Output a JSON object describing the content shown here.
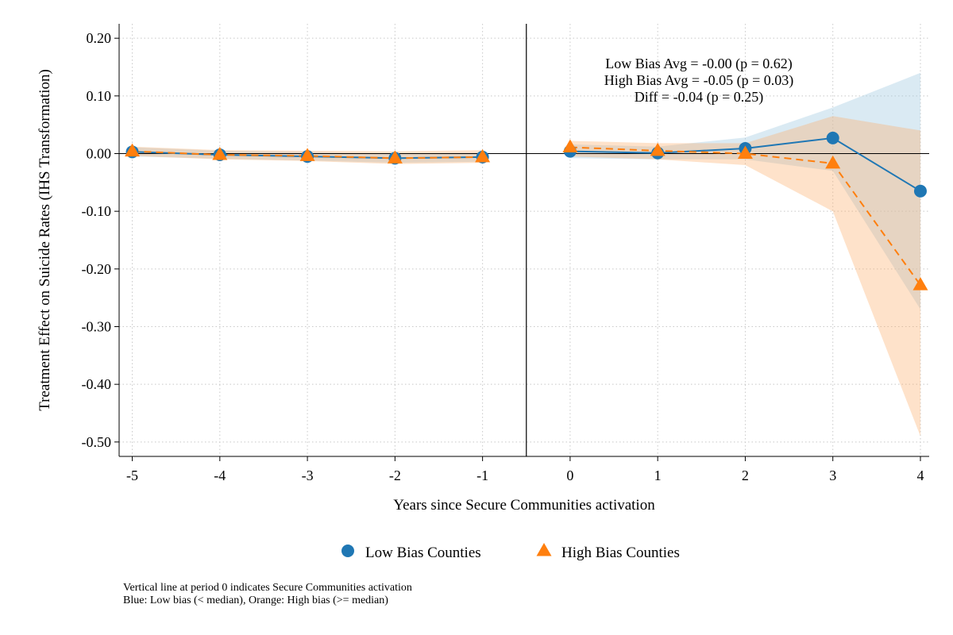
{
  "chart_data": {
    "type": "line",
    "xlabel": "Years since Secure Communities activation",
    "ylabel": "Treatment Effect on Suicide Rates (IHS Transformation)",
    "xlim": [
      -5.15,
      4.1
    ],
    "ylim": [
      -0.525,
      0.225
    ],
    "x_ticks": [
      -5,
      -4,
      -3,
      -2,
      -1,
      0,
      1,
      2,
      3,
      4
    ],
    "x_tick_labels": [
      "-5",
      "-4",
      "-3",
      "-2",
      "-1",
      "0",
      "1",
      "2",
      "3",
      "4"
    ],
    "y_ticks": [
      0.2,
      0.1,
      0.0,
      -0.1,
      -0.2,
      -0.3,
      -0.4,
      -0.5
    ],
    "y_tick_labels": [
      "0.20",
      "0.10",
      "0.00",
      "-0.10",
      "-0.20",
      "-0.30",
      "-0.40",
      "-0.50"
    ],
    "grid": true,
    "vline_x": -0.5,
    "hline_y": 0,
    "annotations": [
      "Low Bias Avg = -0.00 (p = 0.62)",
      "High Bias Avg = -0.05 (p = 0.03)",
      "Diff = -0.04 (p = 0.25)"
    ],
    "legend_position": "bottom",
    "series": [
      {
        "name": "Low Bias Counties",
        "color": "#1f77b4",
        "marker": "circle",
        "line_style": "solid",
        "pre": {
          "x": [
            -5,
            -4,
            -3,
            -2,
            -1
          ],
          "y": [
            0.003,
            -0.002,
            -0.005,
            -0.008,
            -0.006
          ],
          "lower": [
            -0.005,
            -0.009,
            -0.012,
            -0.016,
            -0.014
          ],
          "upper": [
            0.011,
            0.005,
            0.003,
            0.0,
            0.002
          ]
        },
        "post": {
          "x": [
            0,
            1,
            2,
            3,
            4
          ],
          "y": [
            0.004,
            0.001,
            0.009,
            0.027,
            -0.065
          ],
          "lower": [
            -0.008,
            -0.01,
            -0.01,
            -0.03,
            -0.27
          ],
          "upper": [
            0.016,
            0.012,
            0.028,
            0.08,
            0.14
          ]
        }
      },
      {
        "name": "High Bias Counties",
        "color": "#ff7f0e",
        "marker": "triangle",
        "line_style": "dashed",
        "pre": {
          "x": [
            -5,
            -4,
            -3,
            -2,
            -1
          ],
          "y": [
            0.004,
            -0.002,
            -0.004,
            -0.008,
            -0.006
          ],
          "lower": [
            -0.004,
            -0.01,
            -0.013,
            -0.018,
            -0.016
          ],
          "upper": [
            0.012,
            0.006,
            0.005,
            0.004,
            0.006
          ]
        },
        "post": {
          "x": [
            0,
            1,
            2,
            3,
            4
          ],
          "y": [
            0.011,
            0.005,
            0.0,
            -0.017,
            -0.228
          ],
          "lower": [
            -0.005,
            -0.01,
            -0.02,
            -0.1,
            -0.49
          ],
          "upper": [
            0.022,
            0.018,
            0.018,
            0.065,
            0.04
          ]
        }
      }
    ]
  },
  "notes": {
    "line1": "Vertical line at period 0 indicates Secure Communities activation",
    "line2": "Blue: Low bias (< median), Orange: High bias (>= median)"
  }
}
